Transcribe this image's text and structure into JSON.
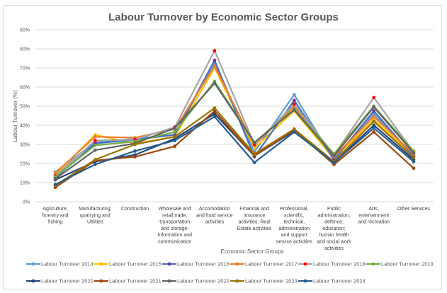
{
  "chart_data": {
    "type": "line",
    "title": "Labour Turnover by Economic Sector Groups",
    "xlabel": "Economic Sector Groups",
    "ylabel": "Labour Turnover (%)",
    "ylim": [
      0,
      90
    ],
    "yticks": [
      "0%",
      "10%",
      "20%",
      "30%",
      "40%",
      "50%",
      "60%",
      "70%",
      "80%",
      "90%"
    ],
    "grid": true,
    "legend_position": "bottom",
    "categories": [
      [
        "Agriculture,",
        "forestry and",
        "fishing"
      ],
      [
        "Manufacturing,",
        "quarrying and",
        "Utilities"
      ],
      [
        "Construction"
      ],
      [
        "Wholesale and",
        "retail trade;",
        "transportation",
        "and storage;",
        "Information and",
        "communication"
      ],
      [
        "Accomodation",
        "and food service",
        "activities"
      ],
      [
        "Financial and",
        "insurance",
        "activities; Real",
        "Estate activities"
      ],
      [
        "Professional,",
        "scientific,",
        "technical,",
        "administration",
        "and support",
        "service activities"
      ],
      [
        "Public",
        "administration,",
        "defence;",
        "education;",
        "human health",
        "and social work",
        "activities"
      ],
      [
        "Arts,",
        "entertainment",
        "and recreation"
      ],
      [
        "Other Services"
      ]
    ],
    "series": [
      {
        "name": "Labour Turnover 2014",
        "color": "#5b9bd5",
        "marker": "#5b9bd5",
        "values": [
          15.5,
          31,
          33,
          35,
          73,
          26,
          56,
          21.5,
          46,
          24
        ]
      },
      {
        "name": "Labour Turnover 2015",
        "color": "#ffc000",
        "marker": "#ffc000",
        "values": [
          14,
          35,
          30.5,
          34,
          70,
          28,
          47.5,
          22.5,
          43,
          24
        ]
      },
      {
        "name": "Labour Turnover 2016",
        "color": "#4472c4",
        "marker": "#7030a0",
        "values": [
          12.5,
          30.5,
          32.5,
          35,
          74,
          23.5,
          53,
          22,
          47.5,
          23.5
        ]
      },
      {
        "name": "Labour Turnover 2017",
        "color": "#ed7d31",
        "marker": "#ed7d31",
        "values": [
          15,
          34,
          33.5,
          38,
          71,
          29.5,
          50,
          23.5,
          44.5,
          25
        ]
      },
      {
        "name": "Labour Turnover 2018",
        "color": "#a5a5a5",
        "marker": "#ff0000",
        "values": [
          13.5,
          32,
          32.5,
          39,
          79,
          30,
          51,
          24.5,
          54.5,
          26
        ]
      },
      {
        "name": "Labour Turnover 2019",
        "color": "#70ad47",
        "marker": "#70ad47",
        "values": [
          13,
          29.5,
          31.5,
          36.5,
          63,
          31,
          48.5,
          25,
          50,
          26.5
        ]
      },
      {
        "name": "Labour Turnover 2020",
        "color": "#264478",
        "marker": "#264478",
        "values": [
          11.5,
          21,
          24.5,
          33,
          46,
          24,
          37,
          20.5,
          40,
          22
        ]
      },
      {
        "name": "Labour Turnover 2021",
        "color": "#9e480e",
        "marker": "#9e480e",
        "values": [
          7.5,
          21.5,
          23.5,
          29,
          47.5,
          24,
          37.5,
          19.5,
          36.5,
          17.5
        ]
      },
      {
        "name": "Labour Turnover 2022",
        "color": "#636363",
        "marker": "#636363",
        "values": [
          12,
          27,
          30.5,
          38.5,
          62,
          31,
          48,
          24,
          49.5,
          25.5
        ]
      },
      {
        "name": "Labour Turnover 2023",
        "color": "#997300",
        "marker": "#997300",
        "values": [
          8.5,
          22,
          30,
          34,
          49,
          25,
          38,
          21,
          42,
          23
        ]
      },
      {
        "name": "Labour Turnover 2024",
        "color": "#255e91",
        "marker": "#255e91",
        "values": [
          9,
          19.5,
          26.5,
          32,
          44.5,
          20.5,
          36.5,
          20.5,
          38.5,
          21
        ]
      }
    ]
  }
}
